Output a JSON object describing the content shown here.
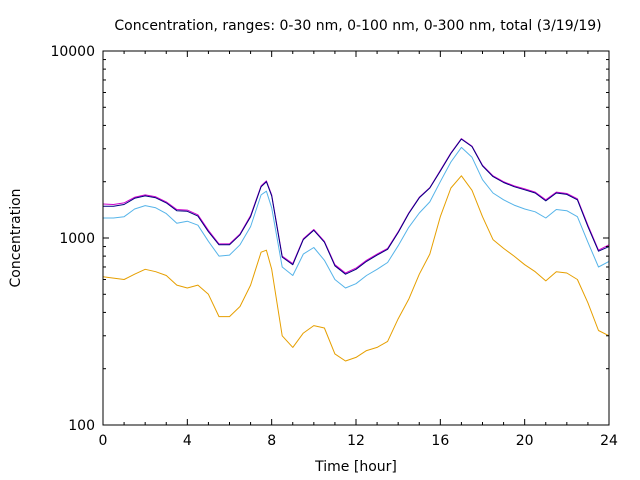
{
  "chart_data": {
    "type": "line",
    "title": "Concentration, ranges: 0-30 nm, 0-100 nm, 0-300 nm, total (3/19/19)",
    "xlabel": "Time [hour]",
    "ylabel": "Concentration",
    "xlim": [
      0,
      24
    ],
    "ylim": [
      100,
      10000
    ],
    "yscale": "log",
    "grid": false,
    "xticks": [
      0,
      4,
      8,
      12,
      16,
      20,
      24
    ],
    "xtick_labels": [
      "0",
      "4",
      "8",
      "12",
      "16",
      "20",
      "24"
    ],
    "yticks": [
      100,
      1000,
      10000
    ],
    "ytick_labels": [
      "100",
      "1000",
      "10000"
    ],
    "x": [
      0,
      0.5,
      1,
      1.5,
      2,
      2.5,
      3,
      3.5,
      4,
      4.5,
      5,
      5.5,
      6,
      6.5,
      7,
      7.5,
      7.75,
      8,
      8.5,
      9,
      9.5,
      10,
      10.5,
      11,
      11.5,
      12,
      12.5,
      13,
      13.5,
      14,
      14.5,
      15,
      15.5,
      16,
      16.5,
      17,
      17.5,
      18,
      18.5,
      19,
      19.5,
      20,
      20.5,
      21,
      21.5,
      22,
      22.5,
      23,
      23.5,
      24
    ],
    "series": [
      {
        "name": "0-30 nm",
        "color": "#e69f00",
        "values": [
          620,
          610,
          600,
          640,
          680,
          660,
          630,
          560,
          540,
          560,
          500,
          380,
          380,
          430,
          560,
          840,
          860,
          680,
          300,
          260,
          310,
          340,
          330,
          240,
          220,
          230,
          250,
          260,
          280,
          370,
          470,
          640,
          820,
          1300,
          1850,
          2150,
          1800,
          1300,
          980,
          880,
          800,
          720,
          660,
          590,
          660,
          650,
          600,
          450,
          320,
          300
        ]
      },
      {
        "name": "0-100 nm",
        "color": "#56b4e9",
        "values": [
          1280,
          1280,
          1300,
          1430,
          1490,
          1450,
          1350,
          1200,
          1230,
          1170,
          960,
          800,
          810,
          920,
          1150,
          1700,
          1780,
          1450,
          700,
          630,
          820,
          890,
          760,
          600,
          540,
          570,
          630,
          680,
          740,
          910,
          1140,
          1360,
          1560,
          2000,
          2550,
          3050,
          2700,
          2050,
          1740,
          1600,
          1500,
          1430,
          1380,
          1280,
          1420,
          1400,
          1300,
          950,
          700,
          750
        ]
      },
      {
        "name": "0-300 nm",
        "color": "#cc00cc",
        "values": [
          1520,
          1510,
          1540,
          1650,
          1700,
          1660,
          1560,
          1420,
          1410,
          1330,
          1100,
          930,
          930,
          1050,
          1320,
          1900,
          2020,
          1700,
          800,
          730,
          990,
          1110,
          960,
          720,
          650,
          690,
          760,
          820,
          880,
          1080,
          1360,
          1650,
          1860,
          2300,
          2850,
          3400,
          3100,
          2450,
          2150,
          2000,
          1900,
          1830,
          1760,
          1600,
          1760,
          1730,
          1620,
          1170,
          860,
          920
        ]
      },
      {
        "name": "total",
        "color": "#000080",
        "values": [
          1480,
          1480,
          1510,
          1630,
          1680,
          1640,
          1540,
          1400,
          1390,
          1310,
          1080,
          920,
          920,
          1040,
          1300,
          1880,
          2000,
          1680,
          790,
          720,
          980,
          1100,
          950,
          710,
          640,
          680,
          750,
          810,
          870,
          1070,
          1350,
          1640,
          1850,
          2280,
          2830,
          3380,
          3080,
          2430,
          2130,
          1980,
          1880,
          1810,
          1740,
          1580,
          1740,
          1710,
          1600,
          1150,
          850,
          900
        ]
      }
    ]
  }
}
